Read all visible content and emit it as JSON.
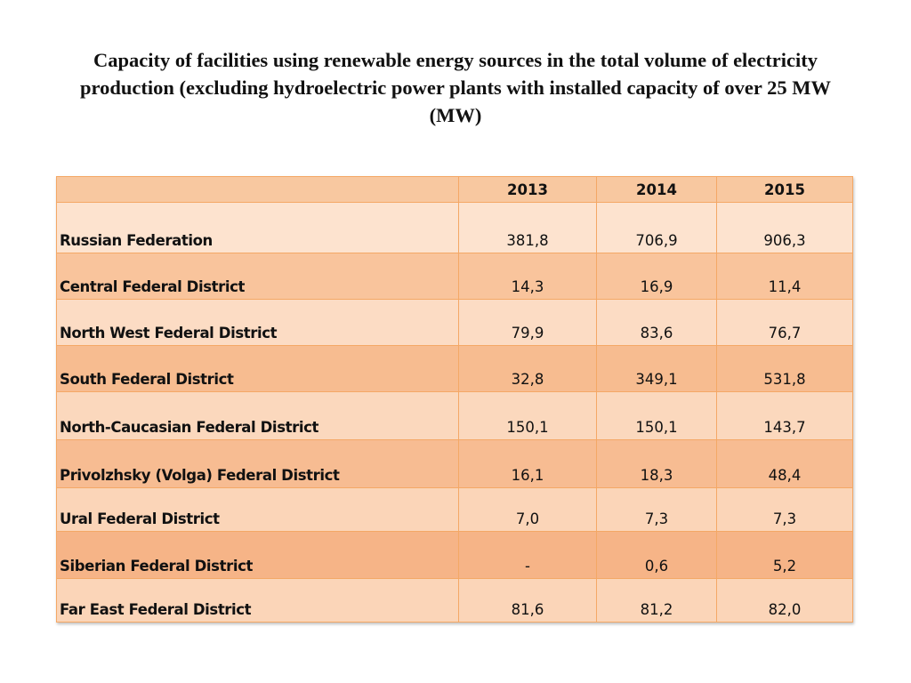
{
  "title": "Capacity of facilities using renewable energy sources in the total volume of electricity production (excluding hydroelectric power plants with installed capacity of over 25 MW (MW)",
  "table": {
    "headers": [
      "",
      "2013",
      "2014",
      "2015"
    ],
    "rows": [
      {
        "name": "Russian Federation",
        "values": [
          "381,8",
          "706,9",
          "906,3"
        ]
      },
      {
        "name": "Central Federal District",
        "values": [
          "14,3",
          "16,9",
          "11,4"
        ]
      },
      {
        "name": "North West Federal District",
        "values": [
          "79,9",
          "83,6",
          "76,7"
        ]
      },
      {
        "name": "South Federal District",
        "values": [
          "32,8",
          "349,1",
          "531,8"
        ]
      },
      {
        "name": "North-Caucasian Federal District",
        "values": [
          "150,1",
          "150,1",
          "143,7"
        ]
      },
      {
        "name": "Privolzhsky (Volga) Federal District",
        "values": [
          "16,1",
          "18,3",
          "48,4"
        ]
      },
      {
        "name": "Ural Federal District",
        "values": [
          "7,0",
          "7,3",
          "7,3"
        ]
      },
      {
        "name": "Siberian Federal District",
        "values": [
          "-",
          "0,6",
          "5,2"
        ]
      },
      {
        "name": "Far East Federal District",
        "values": [
          "81,6",
          "81,2",
          "82,0"
        ]
      }
    ]
  },
  "colors": {
    "header": "#f8c8a0",
    "row_fills": [
      "#fde3cf",
      "#f9c49c",
      "#fcdcc4",
      "#f7bc90",
      "#fbd8bd",
      "#f7bc92",
      "#fbd5b8",
      "#f6b487",
      "#fbd5b8"
    ],
    "border": "#f4a866"
  }
}
